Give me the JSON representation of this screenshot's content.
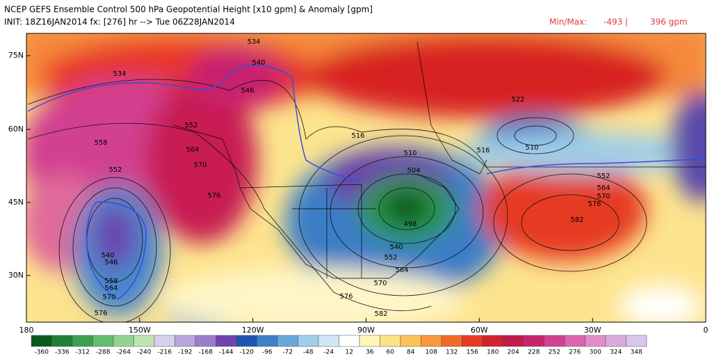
{
  "header": {
    "title": "NCEP GEFS Ensemble Control 500 hPa Geopotential Height [x10 gpm] & Anomaly [gpm]",
    "init": "INIT: 18Z16JAN2014 fx: [276] hr --> Tue 06Z28JAN2014",
    "minmax_label": "Min/Max:",
    "min": "-493 |",
    "max": "396 gpm"
  },
  "map": {
    "lat_labels": [
      "75N",
      "60N",
      "45N",
      "30N"
    ],
    "lon_labels": [
      "180",
      "150W",
      "120W",
      "90W",
      "60W",
      "30W",
      "0"
    ],
    "contour_labels": [
      "534",
      "540",
      "534",
      "546",
      "552",
      "558",
      "564",
      "570",
      "552",
      "576",
      "540",
      "546",
      "558",
      "564",
      "570",
      "576",
      "516",
      "510",
      "504",
      "516",
      "522",
      "510",
      "552",
      "564",
      "570",
      "576",
      "582",
      "540",
      "552",
      "564",
      "570",
      "576",
      "582",
      "498"
    ]
  },
  "colorbar": {
    "labels": [
      "-360",
      "-336",
      "-312",
      "-288",
      "-264",
      "-240",
      "-216",
      "-192",
      "-168",
      "-144",
      "-120",
      "-96",
      "-72",
      "-48",
      "-24",
      "12",
      "36",
      "60",
      "84",
      "108",
      "132",
      "156",
      "180",
      "204",
      "228",
      "252",
      "276",
      "300",
      "324",
      "348"
    ],
    "colors": [
      "#0a5a1e",
      "#1f7f36",
      "#3ba050",
      "#66bd6e",
      "#93d390",
      "#bfe6b0",
      "#d6d2ec",
      "#b9a7dc",
      "#9a7ecb",
      "#6f45ad",
      "#1f55b2",
      "#3b80c8",
      "#6aa8da",
      "#9fcdea",
      "#cfe8f4",
      "#ffffff",
      "#fff6b8",
      "#fde28a",
      "#fbc25a",
      "#f8983a",
      "#f26a28",
      "#e63a22",
      "#d2222e",
      "#c01a48",
      "#c8246e",
      "#d44092",
      "#dc64b0",
      "#e48cc8",
      "#dcaadc",
      "#d8c8ec"
    ]
  }
}
